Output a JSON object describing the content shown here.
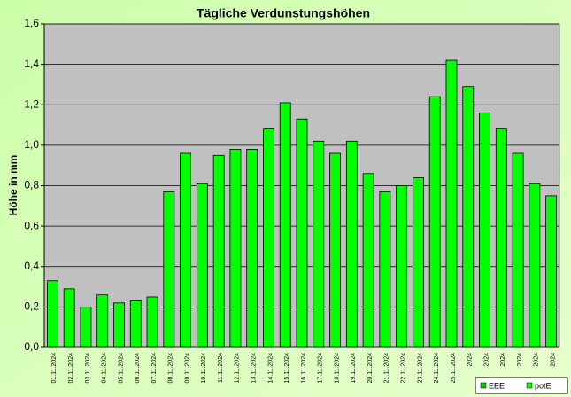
{
  "chart_data": {
    "type": "bar",
    "title": "Tägliche Verdunstungshöhen",
    "y_label": "Höhe in mm",
    "categories": [
      "01.11.2024",
      "02.11.2024",
      "03.11.2024",
      "04.11.2024",
      "05.11.2024",
      "06.11.2024",
      "07.11.2024",
      "08.11.2024",
      "09.11.2024",
      "10.11.2024",
      "11.11.2024",
      "12.11.2024",
      "13.11.2024",
      "14.11.2024",
      "15.11.2024",
      "16.11.2024",
      "17.11.2024",
      "18.11.2024",
      "19.11.2024",
      "20.11.2024",
      "21.11.2024",
      "22.11.2024",
      "23.11.2024",
      "24.11.2024",
      "25.11.2024",
      "2024",
      "2024",
      "2024",
      "2024",
      "2024",
      "2024"
    ],
    "series": [
      {
        "name": "EEE",
        "color": "#00cc00",
        "values": [
          null,
          null,
          null,
          null,
          null,
          null,
          null,
          null,
          null,
          null,
          null,
          null,
          null,
          null,
          null,
          null,
          null,
          null,
          null,
          null,
          null,
          null,
          null,
          null,
          null,
          null,
          null,
          null,
          null,
          null,
          null
        ]
      },
      {
        "name": "potE",
        "color": "#00ff00",
        "values": [
          0.33,
          0.29,
          0.2,
          0.26,
          0.22,
          0.23,
          0.25,
          0.77,
          0.96,
          0.81,
          0.95,
          0.98,
          0.98,
          1.08,
          1.21,
          1.13,
          1.02,
          0.96,
          1.02,
          0.86,
          0.77,
          0.8,
          0.84,
          1.24,
          1.42,
          1.29,
          1.16,
          1.08,
          0.96,
          0.81,
          0.75
        ]
      }
    ],
    "ylim": [
      0,
      1.6
    ],
    "yticks": [
      {
        "value": 0,
        "label": "0,0"
      },
      {
        "value": 0.2,
        "label": "0,2"
      },
      {
        "value": 0.4,
        "label": "0,4"
      },
      {
        "value": 0.6,
        "label": "0,6"
      },
      {
        "value": 0.8,
        "label": "0,8"
      },
      {
        "value": 1,
        "label": "1,0"
      },
      {
        "value": 1.2,
        "label": "1,2"
      },
      {
        "value": 1.4,
        "label": "1,4"
      },
      {
        "value": 1.6,
        "label": "1,6"
      }
    ],
    "grid": true,
    "legend": "bottom-right"
  }
}
